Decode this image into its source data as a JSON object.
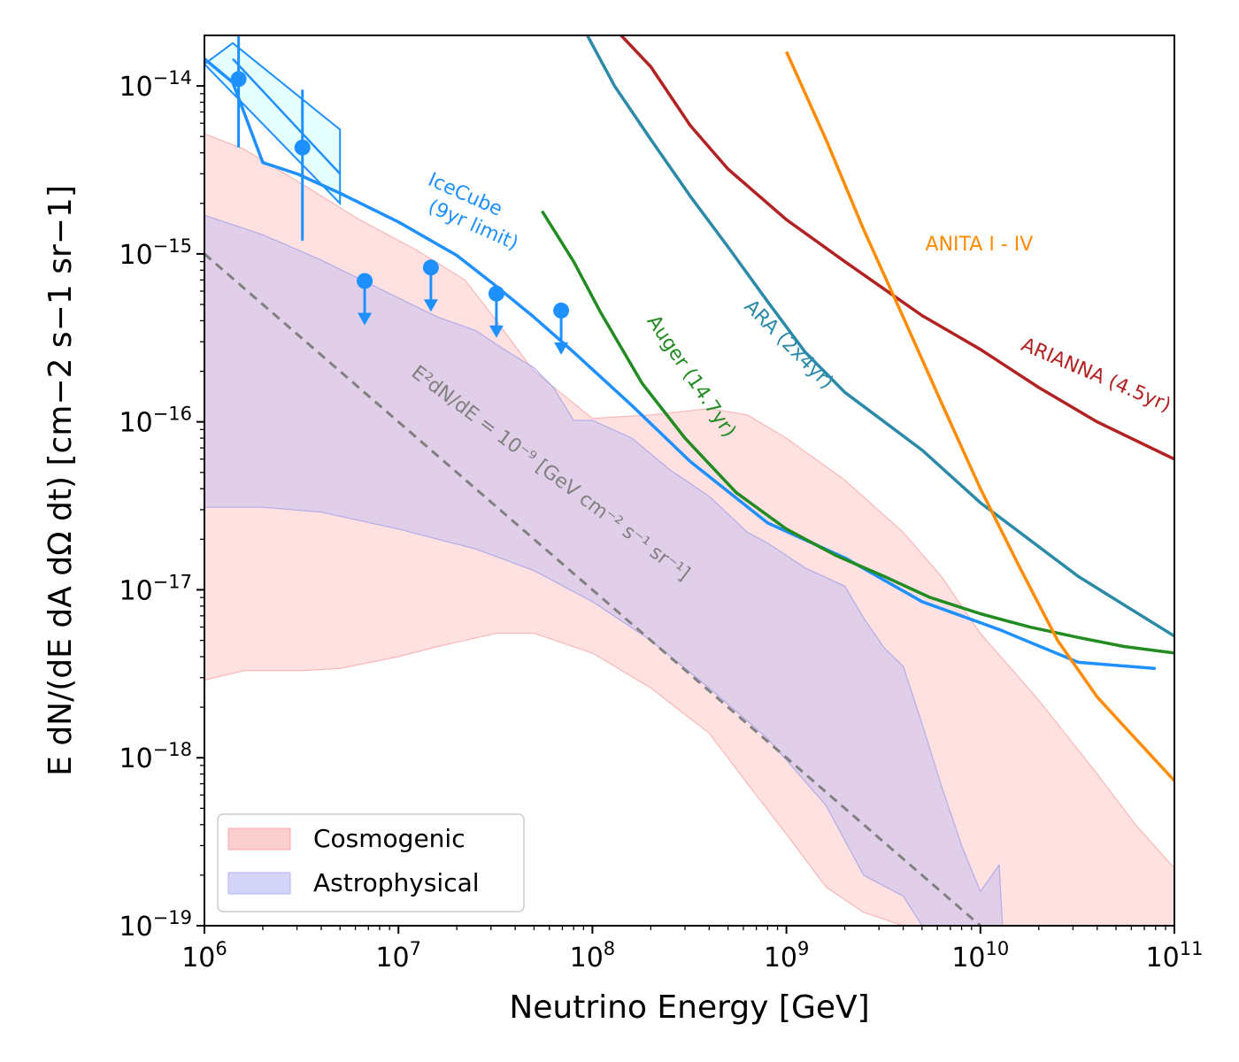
{
  "chart_data": {
    "type": "line",
    "title": "",
    "xlabel": "Neutrino Energy [GeV]",
    "ylabel": "E dN/(dE dA dΩ dt) [cm−2 s−1 sr−1]",
    "xscale": "log",
    "yscale": "log",
    "xlim": [
      1000000.0,
      100000000000.0
    ],
    "ylim": [
      1e-19,
      2e-14
    ],
    "xticks": [
      {
        "value": 1000000.0,
        "base": "10",
        "exp": "6"
      },
      {
        "value": 10000000.0,
        "base": "10",
        "exp": "7"
      },
      {
        "value": 100000000.0,
        "base": "10",
        "exp": "8"
      },
      {
        "value": 1000000000.0,
        "base": "10",
        "exp": "9"
      },
      {
        "value": 10000000000.0,
        "base": "10",
        "exp": "10"
      },
      {
        "value": 100000000000.0,
        "base": "10",
        "exp": "11"
      }
    ],
    "yticks": [
      {
        "value": 1e-19,
        "base": "10",
        "exp": "−19"
      },
      {
        "value": 1e-18,
        "base": "10",
        "exp": "−18"
      },
      {
        "value": 1e-17,
        "base": "10",
        "exp": "−17"
      },
      {
        "value": 1e-16,
        "base": "10",
        "exp": "−16"
      },
      {
        "value": 1e-15,
        "base": "10",
        "exp": "−15"
      },
      {
        "value": 1e-14,
        "base": "10",
        "exp": "−14"
      }
    ],
    "legend": {
      "position": "bottom-left",
      "entries": [
        {
          "label": "Cosmogenic",
          "color": "#f8a8a8"
        },
        {
          "label": "Astrophysical",
          "color": "#b3b3f5"
        }
      ]
    },
    "bands": [
      {
        "name": "Cosmogenic",
        "color": "#ffb3b3",
        "edge": "#f5a0a0",
        "opacity": 0.4,
        "upper": [
          [
            1000000.0,
            5.2e-15
          ],
          [
            1600000.0,
            4.2e-15
          ],
          [
            3200000.0,
            2.6e-15
          ],
          [
            6300000.0,
            1.6e-15
          ],
          [
            12500000.0,
            1.05e-15
          ],
          [
            22000000.0,
            7e-16
          ],
          [
            32000000.0,
            4e-16
          ],
          [
            50000000.0,
            2e-16
          ],
          [
            100000000.0,
            1.05e-16
          ],
          [
            200000000.0,
            1.1e-16
          ],
          [
            400000000.0,
            1.2e-16
          ],
          [
            630000000.0,
            1.1e-16
          ],
          [
            1000000000.0,
            8e-17
          ],
          [
            2000000000.0,
            4.5e-17
          ],
          [
            4000000000.0,
            2.2e-17
          ],
          [
            6300000000.0,
            1.2e-17
          ],
          [
            10000000000.0,
            5.5e-18
          ],
          [
            20000000000.0,
            2.2e-18
          ],
          [
            40000000000.0,
            8e-19
          ],
          [
            63000000000.0,
            4e-19
          ],
          [
            100000000000.0,
            2.2e-19
          ]
        ],
        "lower": [
          [
            1000000.0,
            2.9e-18
          ],
          [
            1600000.0,
            3.3e-18
          ],
          [
            3200000.0,
            3.3e-18
          ],
          [
            5000000.0,
            3.4e-18
          ],
          [
            10000000.0,
            4e-18
          ],
          [
            16000000.0,
            4.6e-18
          ],
          [
            32000000.0,
            5.5e-18
          ],
          [
            50000000.0,
            5.5e-18
          ],
          [
            100000000.0,
            4.2e-18
          ],
          [
            200000000.0,
            2.6e-18
          ],
          [
            400000000.0,
            1.4e-18
          ],
          [
            630000000.0,
            7e-19
          ],
          [
            1000000000.0,
            3.5e-19
          ],
          [
            1600000000.0,
            1.7e-19
          ],
          [
            2500000000.0,
            1.2e-19
          ],
          [
            4000000000.0,
            1e-19
          ],
          [
            6300000000.0,
            1e-19
          ],
          [
            10000000000.0,
            1e-19
          ],
          [
            40000000000.0,
            1e-19
          ],
          [
            100000000000.0,
            1e-19
          ]
        ]
      },
      {
        "name": "Astrophysical",
        "color": "#b3b3f5",
        "edge": "#9a9ae8",
        "opacity": 0.4,
        "upper": [
          [
            1000000.0,
            1.7e-15
          ],
          [
            2000000.0,
            1.3e-15
          ],
          [
            4000000.0,
            9.2e-16
          ],
          [
            8000000.0,
            6.2e-16
          ],
          [
            16000000.0,
            4.2e-16
          ],
          [
            25000000.0,
            3.5e-16
          ],
          [
            35000000.0,
            2.7e-16
          ],
          [
            50000000.0,
            2.1e-16
          ],
          [
            63000000.0,
            1.6e-16
          ],
          [
            80000000.0,
            1.02e-16
          ],
          [
            100000000.0,
            1.02e-16
          ],
          [
            160000000.0,
            8e-17
          ],
          [
            250000000.0,
            5.2e-17
          ],
          [
            400000000.0,
            3.6e-17
          ],
          [
            630000000.0,
            2.2e-17
          ],
          [
            800000000.0,
            1.9e-17
          ],
          [
            1250000000.0,
            1.35e-17
          ],
          [
            2000000000.0,
            1.05e-17
          ],
          [
            2500000000.0,
            6.8e-18
          ],
          [
            3200000000.0,
            4.5e-18
          ],
          [
            4000000000.0,
            3.5e-18
          ],
          [
            5000000000.0,
            1.6e-18
          ],
          [
            6300000000.0,
            6.8e-19
          ],
          [
            8000000000.0,
            3e-19
          ],
          [
            10000000000.0,
            1.6e-19
          ],
          [
            12500000000.0,
            2.3e-19
          ],
          [
            13000000000.0,
            1e-19
          ]
        ],
        "lower": [
          [
            1000000.0,
            3.1e-17
          ],
          [
            2000000.0,
            3.1e-17
          ],
          [
            4000000.0,
            2.9e-17
          ],
          [
            10000000.0,
            2.3e-17
          ],
          [
            25000000.0,
            1.75e-17
          ],
          [
            50000000.0,
            1.3e-17
          ],
          [
            100000000.0,
            8.5e-18
          ],
          [
            200000000.0,
            5e-18
          ],
          [
            400000000.0,
            2.6e-18
          ],
          [
            800000000.0,
            1.3e-18
          ],
          [
            1600000000.0,
            5.2e-19
          ],
          [
            2500000000.0,
            2e-19
          ],
          [
            4000000000.0,
            1.5e-19
          ],
          [
            5000000000.0,
            1e-19
          ]
        ]
      }
    ],
    "series": [
      {
        "name": "IceCube (9yr limit)",
        "color": "#1e90ff",
        "width": 3.5,
        "points": [
          [
            1000000.0,
            1.45e-14
          ],
          [
            1400000.0,
            1.05e-14
          ],
          [
            2000000.0,
            3.5e-15
          ],
          [
            3000000.0,
            3e-15
          ],
          [
            5000000.0,
            2.3e-15
          ],
          [
            10000000.0,
            1.55e-15
          ],
          [
            20000000.0,
            9.8e-16
          ],
          [
            30000000.0,
            6.8e-16
          ],
          [
            50000000.0,
            4.2e-16
          ],
          [
            80000000.0,
            2.6e-16
          ],
          [
            160000000.0,
            1.25e-16
          ],
          [
            320000000.0,
            5.8e-17
          ],
          [
            800000000.0,
            2.5e-17
          ],
          [
            2000000000.0,
            1.55e-17
          ],
          [
            5000000000.0,
            8.5e-18
          ],
          [
            12500000000.0,
            5.8e-18
          ],
          [
            32000000000.0,
            3.7e-18
          ],
          [
            80000000000.0,
            3.4e-18
          ]
        ]
      },
      {
        "name": "Auger (14.7yr)",
        "color": "#228b22",
        "width": 3.5,
        "points": [
          [
            55000000.0,
            1.8e-15
          ],
          [
            80000000.0,
            9e-16
          ],
          [
            110000000.0,
            4.5e-16
          ],
          [
            180000000.0,
            1.7e-16
          ],
          [
            300000000.0,
            8e-17
          ],
          [
            550000000.0,
            3.8e-17
          ],
          [
            1000000000.0,
            2.3e-17
          ],
          [
            1800000000.0,
            1.6e-17
          ],
          [
            3200000000.0,
            1.2e-17
          ],
          [
            5500000000.0,
            9e-18
          ],
          [
            10000000000.0,
            7.2e-18
          ],
          [
            18000000000.0,
            6e-18
          ],
          [
            32000000000.0,
            5.2e-18
          ],
          [
            55000000000.0,
            4.6e-18
          ],
          [
            100000000000.0,
            4.2e-18
          ]
        ]
      },
      {
        "name": "ARA (2x4yr)",
        "color": "#2a8aa8",
        "width": 3.5,
        "points": [
          [
            90000000.0,
            2.2e-14
          ],
          [
            130000000.0,
            1e-14
          ],
          [
            200000000.0,
            4.8e-15
          ],
          [
            320000000.0,
            2.2e-15
          ],
          [
            500000000.0,
            1.1e-15
          ],
          [
            800000000.0,
            5.2e-16
          ],
          [
            1250000000.0,
            2.6e-16
          ],
          [
            2000000000.0,
            1.5e-16
          ],
          [
            3200000000.0,
            1e-16
          ],
          [
            5000000000.0,
            6.8e-17
          ],
          [
            10000000000.0,
            3.3e-17
          ],
          [
            32000000000.0,
            1.2e-17
          ],
          [
            100000000000.0,
            5.3e-18
          ]
        ]
      },
      {
        "name": "ARIANNA (4.5yr)",
        "color": "#b22222",
        "width": 3.5,
        "points": [
          [
            130000000.0,
            2.2e-14
          ],
          [
            200000000.0,
            1.3e-14
          ],
          [
            320000000.0,
            5.8e-15
          ],
          [
            500000000.0,
            3.2e-15
          ],
          [
            1000000000.0,
            1.6e-15
          ],
          [
            2000000000.0,
            9e-16
          ],
          [
            5000000000.0,
            4.3e-16
          ],
          [
            10000000000.0,
            2.7e-16
          ],
          [
            20000000000.0,
            1.6e-16
          ],
          [
            40000000000.0,
            1e-16
          ],
          [
            100000000000.0,
            6e-17
          ]
        ]
      },
      {
        "name": "ANITA I - IV",
        "color": "#ff8c00",
        "width": 3.5,
        "points": [
          [
            1000000000.0,
            1.6e-14
          ],
          [
            1600000000.0,
            4.8e-15
          ],
          [
            2500000000.0,
            1.4e-15
          ],
          [
            4000000000.0,
            4.2e-16
          ],
          [
            6300000000.0,
            1.3e-16
          ],
          [
            10000000000.0,
            4e-17
          ],
          [
            16000000000.0,
            1.35e-17
          ],
          [
            25000000000.0,
            5e-18
          ],
          [
            40000000000.0,
            2.3e-18
          ],
          [
            63000000000.0,
            1.3e-18
          ],
          [
            100000000000.0,
            7.3e-19
          ]
        ]
      },
      {
        "name": "E²dN/dE = 10⁻⁹",
        "color": "#808080",
        "width": 3,
        "dash": "10,7",
        "points": [
          [
            1000000.0,
            1e-15
          ],
          [
            10000000000.0,
            1e-19
          ]
        ]
      }
    ],
    "icecube_box": {
      "color": "#1e90ff",
      "fill": "#e0ffff",
      "upper": [
        [
          1400000.0,
          1.8e-14
        ],
        [
          5000000.0,
          5.5e-15
        ]
      ],
      "lower": [
        [
          1000000.0,
          1.35e-14
        ],
        [
          5000000.0,
          2e-15
        ]
      ],
      "mid": [
        [
          1400000.0,
          1.45e-14
        ],
        [
          5000000.0,
          3e-15
        ]
      ]
    },
    "points": [
      {
        "x": 1500000.0,
        "y": 1.1e-14,
        "ylow": 4.3e-15,
        "yhigh": 2e-14
      },
      {
        "x": 3200000.0,
        "y": 4.3e-15,
        "ylow": 1.2e-15,
        "yhigh": 9.5e-15
      }
    ],
    "upper_limits": [
      {
        "x": 6700000.0,
        "y": 6.9e-16
      },
      {
        "x": 14700000.0,
        "y": 8.3e-16
      },
      {
        "x": 32000000.0,
        "y": 5.8e-16
      },
      {
        "x": 69000000.0,
        "y": 4.6e-16
      }
    ],
    "annotations": [
      {
        "text": "IceCube",
        "x": 14000000.0,
        "y": 2.6e-15,
        "angle": 24,
        "color": "#1e90ff"
      },
      {
        "text": "(9yr limit)",
        "x": 14000000.0,
        "y": 1.8e-15,
        "angle": 24,
        "color": "#1e90ff"
      },
      {
        "text": "Auger (14.7yr)",
        "x": 190000000.0,
        "y": 4e-16,
        "angle": 56,
        "color": "#228b22"
      },
      {
        "text": "ARA (2x4yr)",
        "x": 600000000.0,
        "y": 4.8e-16,
        "angle": 45,
        "color": "#2a8aa8"
      },
      {
        "text": "ANITA I - IV",
        "x": 5200000000.0,
        "y": 1.05e-15,
        "angle": 0,
        "color": "#ff8c00"
      },
      {
        "text": "ARIANNA (4.5yr)",
        "x": 16000000000.0,
        "y": 2.7e-16,
        "angle": 23,
        "color": "#b22222"
      },
      {
        "text": "E²dN/dE = 10⁻⁹ [GeV cm⁻² s⁻¹ sr⁻¹]",
        "x": 11500000.0,
        "y": 1.9e-16,
        "angle": 37,
        "color": "#808080"
      }
    ]
  }
}
